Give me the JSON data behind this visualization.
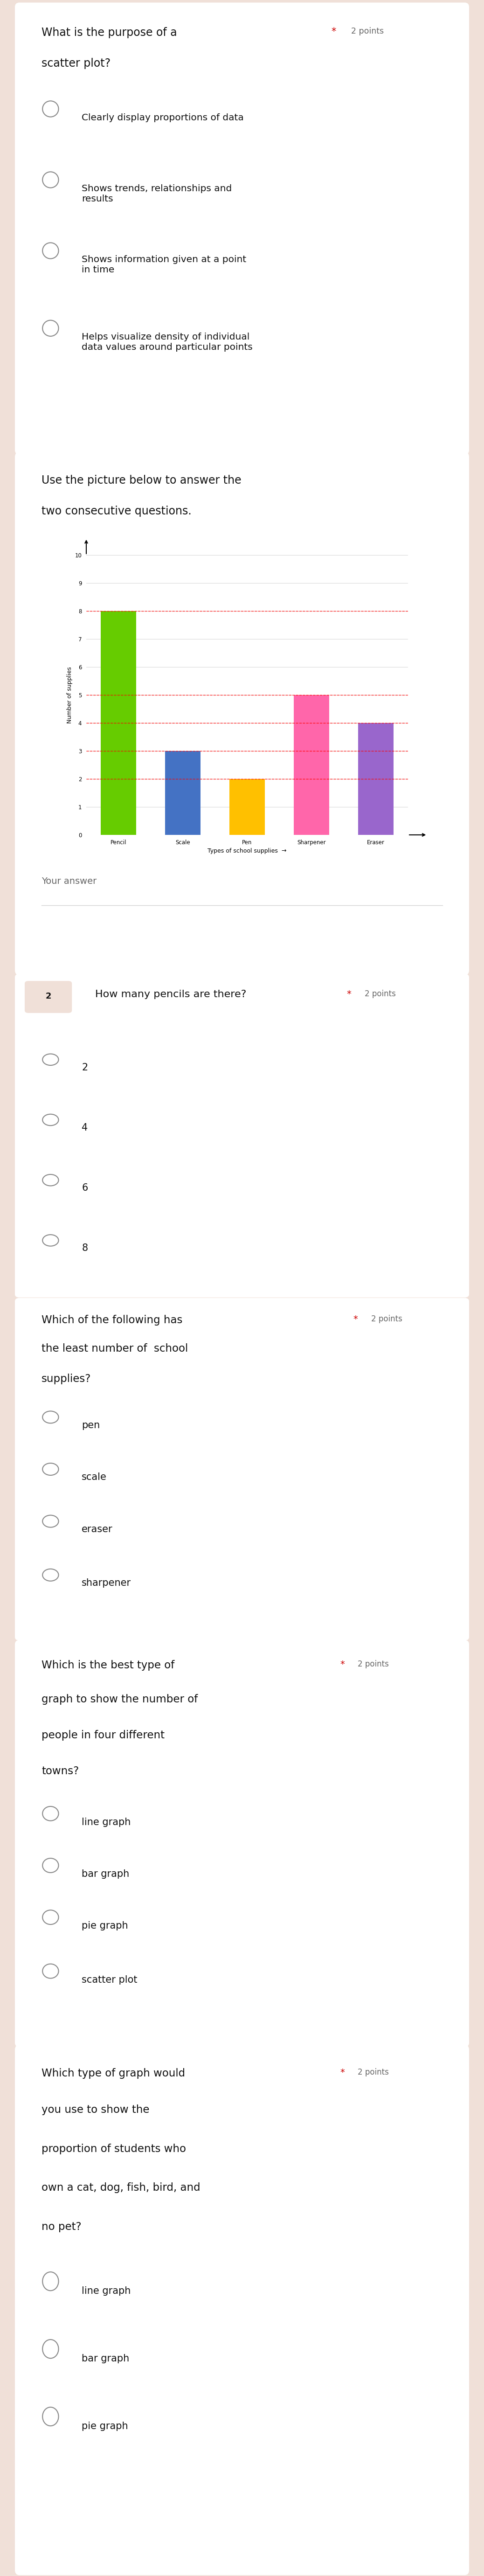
{
  "background_color": "#f0e0d8",
  "card_color": "#ffffff",
  "questions": [
    {
      "id": 1,
      "question_lines": [
        "What is the purpose of a",
        "scatter plot?"
      ],
      "points_label": "2 points",
      "options": [
        "Clearly display proportions of data",
        "Shows trends, relationships and\nresults",
        "Shows information given at a point\nin time",
        "Helps visualize density of individual\ndata values around particular points"
      ],
      "type": "radio"
    },
    {
      "id": 2,
      "question_lines": [
        "Use the picture below to answer the",
        "two consecutive questions."
      ],
      "points_label": "",
      "options": [],
      "type": "image_card",
      "image_data": {
        "categories": [
          "Pencil",
          "Scale",
          "Pen",
          "Sharpener",
          "Eraser"
        ],
        "values": [
          8,
          3,
          2,
          5,
          4
        ],
        "colors": [
          "#66cc00",
          "#4472c4",
          "#ffc000",
          "#ff66aa",
          "#9966cc"
        ],
        "ylabel": "Number of supplies",
        "xlabel": "Types of school supplies",
        "ylim": [
          0,
          10
        ],
        "red_dashed_y": [
          2,
          3,
          4,
          5,
          8
        ],
        "your_answer_label": "Your answer"
      }
    },
    {
      "id": 3,
      "question_lines": [
        "How many pencils are there?"
      ],
      "points_label": "2 points",
      "options": [
        "2",
        "4",
        "6",
        "8"
      ],
      "type": "radio"
    },
    {
      "id": 4,
      "question_lines": [
        "Which of the following has",
        "the least number of  school",
        "supplies?"
      ],
      "points_label": "2 points",
      "options": [
        "pen",
        "scale",
        "eraser",
        "sharpener"
      ],
      "type": "radio"
    },
    {
      "id": 5,
      "question_lines": [
        "Which is the best type of",
        "graph to show the number of",
        "people in four different",
        "towns?"
      ],
      "points_label": "2 points",
      "options": [
        "line graph",
        "bar graph",
        "pie graph",
        "scatter plot"
      ],
      "type": "radio"
    },
    {
      "id": 6,
      "question_lines": [
        "Which type of graph would",
        "you use to show the",
        "proportion of students who",
        "own a cat, dog, fish, bird, and",
        "no pet?"
      ],
      "points_label": "2 points",
      "options": [
        "line graph",
        "bar graph",
        "pie graph"
      ],
      "type": "radio"
    }
  ],
  "circle_color": "#888888",
  "points_color": "#cc0000",
  "text_color": "#111111",
  "subtext_color": "#666666"
}
